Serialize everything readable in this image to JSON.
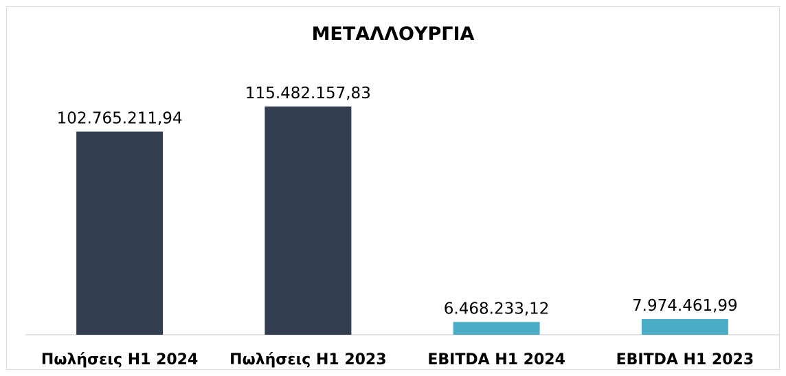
{
  "chart_data": {
    "type": "bar",
    "title": "ΜΕΤΑΛΛΟΥΡΓΙΑ",
    "categories": [
      "Πωλήσεις H1 2024",
      "Πωλήσεις H1 2023",
      "EBITDA H1 2024",
      "EBITDA H1 2023"
    ],
    "values": [
      102765211.94,
      115482157.83,
      6468233.12,
      7974461.99
    ],
    "value_labels": [
      "102.765.211,94",
      "115.482.157,83",
      "6.468.233,12",
      "7.974.461,99"
    ],
    "bar_colors": [
      "#333f50",
      "#333f50",
      "#4bacc6",
      "#4bacc6"
    ],
    "xlabel": "",
    "ylabel": "",
    "ylim": [
      0,
      145000000
    ],
    "grid": false,
    "legend": "none"
  }
}
